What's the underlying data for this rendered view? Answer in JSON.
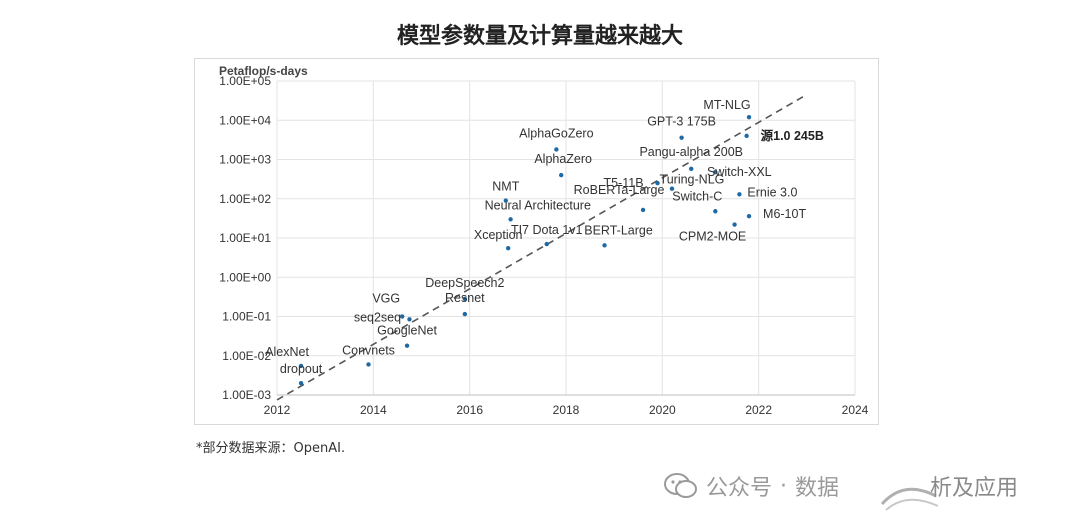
{
  "title": "模型参数量及计算量越来越大",
  "footnote": "*部分数据来源：OpenAI.",
  "watermark": {
    "text": "公众号",
    "separator": "·",
    "name": "数据",
    "suffix": "析及应用",
    "icon": "wechat-icon"
  },
  "chart_data": {
    "type": "scatter",
    "title": "模型参数量及计算量越来越大",
    "ylabel": "Petaflop/s-days",
    "xlabel": "",
    "y_scale": "log",
    "xlim": [
      2012,
      2024
    ],
    "ylim": [
      0.001,
      100000
    ],
    "x_ticks": [
      "2012",
      "2014",
      "2016",
      "2018",
      "2020",
      "2022",
      "2024"
    ],
    "y_ticks": [
      "1.00E-03",
      "1.00E-02",
      "1.00E-01",
      "1.00E+00",
      "1.00E+01",
      "1.00E+02",
      "1.00E+03",
      "1.00E+04",
      "1.00E+05"
    ],
    "grid": true,
    "trend_line": {
      "style": "dashed",
      "from": [
        2012,
        0.00075
      ],
      "to": [
        2023,
        45000
      ]
    },
    "point_color": "#1f6aa5",
    "points": [
      {
        "label": "AlexNet",
        "x": 2012.5,
        "y": 0.0055
      },
      {
        "label": "dropout",
        "x": 2012.5,
        "y": 0.002
      },
      {
        "label": "Convnets",
        "x": 2013.9,
        "y": 0.006
      },
      {
        "label": "VGG",
        "x": 2014.6,
        "y": 0.1
      },
      {
        "label": "seq2seq",
        "x": 2014.75,
        "y": 0.085
      },
      {
        "label": "GoogleNet",
        "x": 2014.7,
        "y": 0.018
      },
      {
        "label": "DeepSpeech2",
        "x": 2015.9,
        "y": 0.28
      },
      {
        "label": "Resnet",
        "x": 2015.9,
        "y": 0.115
      },
      {
        "label": "Xception",
        "x": 2016.8,
        "y": 5.5
      },
      {
        "label": "Neural Architecture",
        "x": 2016.85,
        "y": 30
      },
      {
        "label": "NMT",
        "x": 2016.75,
        "y": 90
      },
      {
        "label": "TI7 Dota 1v1",
        "x": 2017.6,
        "y": 7
      },
      {
        "label": "AlphaGoZero",
        "x": 2017.8,
        "y": 1800
      },
      {
        "label": "AlphaZero",
        "x": 2017.9,
        "y": 400
      },
      {
        "label": "BERT-Large",
        "x": 2018.8,
        "y": 6.5
      },
      {
        "label": "RoBERTa-Large",
        "x": 2019.6,
        "y": 52
      },
      {
        "label": "T5-11B",
        "x": 2019.9,
        "y": 250
      },
      {
        "label": "Turing-NLG",
        "x": 2020.2,
        "y": 180
      },
      {
        "label": "GPT-3 175B",
        "x": 2020.4,
        "y": 3600
      },
      {
        "label": "Pangu-alpha 200B",
        "x": 2020.6,
        "y": 580
      },
      {
        "label": "Switch-XXL",
        "x": 2021.1,
        "y": 480
      },
      {
        "label": "Switch-C",
        "x": 2021.1,
        "y": 48
      },
      {
        "label": "CPM2-MOE",
        "x": 2021.5,
        "y": 22
      },
      {
        "label": "Ernie 3.0",
        "x": 2021.6,
        "y": 130
      },
      {
        "label": "M6-10T",
        "x": 2021.8,
        "y": 36
      },
      {
        "label": "MT-NLG",
        "x": 2021.8,
        "y": 12000
      },
      {
        "label": "源1.0 245B",
        "x": 2021.75,
        "y": 4000
      }
    ]
  }
}
